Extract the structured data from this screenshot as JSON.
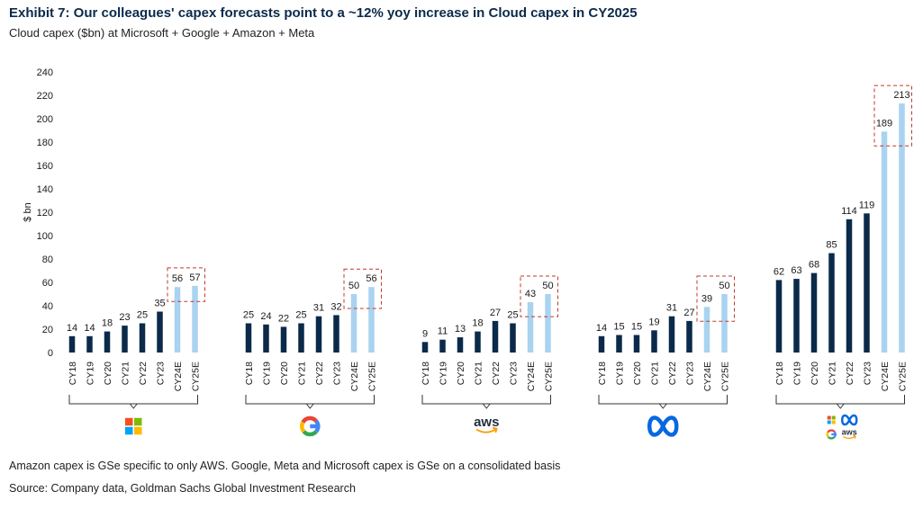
{
  "title": "Exhibit 7: Our colleagues' capex forecasts point to a ~12% yoy increase in Cloud capex in CY2025",
  "subtitle": "Cloud capex ($bn) at Microsoft + Google + Amazon + Meta",
  "footnote": "Amazon capex is GSe specific to only AWS. Google, Meta and Microsoft capex is GSe on a consolidated basis",
  "source": "Source: Company data, Goldman Sachs Global Investment Research",
  "colors": {
    "actual": "#0b2a4a",
    "estimate": "#a9d3f0",
    "highlight_box": "#c0392b"
  },
  "chart_data": {
    "type": "bar",
    "ylabel": "$ bn",
    "ylim": [
      0,
      240
    ],
    "yticks": [
      0,
      20,
      40,
      60,
      80,
      100,
      120,
      140,
      160,
      180,
      200,
      220,
      240
    ],
    "grid": false,
    "categories": [
      "CY18",
      "CY19",
      "CY20",
      "CY21",
      "CY22",
      "CY23",
      "CY24E",
      "CY25E"
    ],
    "estimate_categories": [
      "CY24E",
      "CY25E"
    ],
    "groups": [
      {
        "logo": "microsoft-logo",
        "values": [
          14,
          14,
          18,
          23,
          25,
          35,
          56,
          57
        ]
      },
      {
        "logo": "google-logo",
        "values": [
          25,
          24,
          22,
          25,
          31,
          32,
          50,
          56
        ]
      },
      {
        "logo": "aws-logo",
        "logo_text": "aws",
        "values": [
          9,
          11,
          13,
          18,
          27,
          25,
          43,
          50
        ]
      },
      {
        "logo": "meta-logo",
        "values": [
          14,
          15,
          15,
          19,
          31,
          27,
          39,
          50
        ]
      },
      {
        "logo": "combined-logo",
        "logo_text": "aws",
        "values": [
          62,
          63,
          68,
          85,
          114,
          119,
          189,
          213
        ]
      }
    ]
  }
}
